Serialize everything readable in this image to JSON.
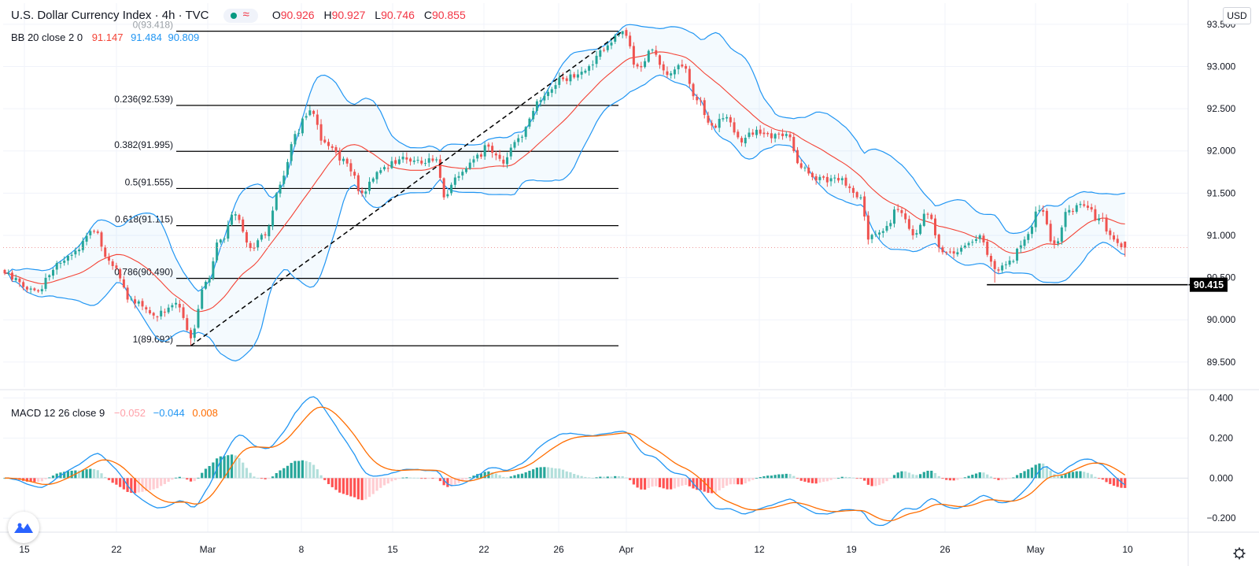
{
  "header": {
    "symbol": "U.S. Dollar Currency Index",
    "interval": "4h",
    "exchange": "TVC",
    "open_label": "O",
    "open": "90.926",
    "high_label": "H",
    "high": "90.927",
    "low_label": "L",
    "low": "90.746",
    "close_label": "C",
    "close": "90.855",
    "currency_button": "USD",
    "wave_symbol": "≈"
  },
  "bb_legend": {
    "label": "BB 20 close 2 0",
    "basis": "91.147",
    "upper": "91.484",
    "lower": "90.809"
  },
  "macd_legend": {
    "label": "MACD 12 26 close 9",
    "histogram": "−0.052",
    "macd": "−0.044",
    "signal": "0.008"
  },
  "colors": {
    "up": "#26a69a",
    "down": "#ef5350",
    "bb_band": "#2196f3",
    "bb_basis": "#f44336",
    "macd_line": "#2196f3",
    "signal_line": "#ff6d00",
    "hist_pos_strong": "#26a69a",
    "hist_pos_weak": "#b2dfdb",
    "hist_neg_strong": "#ff5252",
    "hist_neg_weak": "#ffcdd2",
    "label_tag_bg": "#000000",
    "grid": "#f0f3fa"
  },
  "icons": {
    "logo": "tradingview-logo-icon",
    "settings": "gear-icon"
  },
  "chart_data": [
    {
      "type": "candlestick",
      "title": "U.S. Dollar Currency Index, 4h, TVC",
      "ylim": [
        89.2,
        93.75
      ],
      "price_axis_ticks": [
        "93.500",
        "93.000",
        "92.500",
        "92.000",
        "91.500",
        "91.000",
        "90.500",
        "90.000",
        "89.500"
      ],
      "time_axis_labels": [
        "15",
        "22",
        "Mar",
        "8",
        "15",
        "22",
        "26",
        "Apr",
        "12",
        "19",
        "26",
        "May",
        "10"
      ],
      "anchors": [
        {
          "bar": 0,
          "close": 90.55
        },
        {
          "bar": 8,
          "close": 90.35
        },
        {
          "bar": 16,
          "close": 90.7
        },
        {
          "bar": 24,
          "close": 91.05
        },
        {
          "bar": 28,
          "close": 90.7
        },
        {
          "bar": 34,
          "close": 90.25
        },
        {
          "bar": 40,
          "close": 90.05
        },
        {
          "bar": 46,
          "close": 90.2
        },
        {
          "bar": 50,
          "close": 89.78
        },
        {
          "bar": 54,
          "close": 90.45
        },
        {
          "bar": 58,
          "close": 90.95
        },
        {
          "bar": 62,
          "close": 91.25
        },
        {
          "bar": 66,
          "close": 90.85
        },
        {
          "bar": 70,
          "close": 91.0
        },
        {
          "bar": 74,
          "close": 91.6
        },
        {
          "bar": 78,
          "close": 92.2
        },
        {
          "bar": 82,
          "close": 92.48
        },
        {
          "bar": 86,
          "close": 92.1
        },
        {
          "bar": 92,
          "close": 91.85
        },
        {
          "bar": 96,
          "close": 91.5
        },
        {
          "bar": 100,
          "close": 91.75
        },
        {
          "bar": 106,
          "close": 91.9
        },
        {
          "bar": 112,
          "close": 91.85
        },
        {
          "bar": 116,
          "close": 91.9
        },
        {
          "bar": 118,
          "close": 91.45
        },
        {
          "bar": 122,
          "close": 91.7
        },
        {
          "bar": 126,
          "close": 91.9
        },
        {
          "bar": 130,
          "close": 92.05
        },
        {
          "bar": 134,
          "close": 91.85
        },
        {
          "bar": 138,
          "close": 92.15
        },
        {
          "bar": 144,
          "close": 92.6
        },
        {
          "bar": 150,
          "close": 92.85
        },
        {
          "bar": 156,
          "close": 92.95
        },
        {
          "bar": 162,
          "close": 93.25
        },
        {
          "bar": 166,
          "close": 93.42
        },
        {
          "bar": 170,
          "close": 93.0
        },
        {
          "bar": 174,
          "close": 93.2
        },
        {
          "bar": 178,
          "close": 92.9
        },
        {
          "bar": 182,
          "close": 93.0
        },
        {
          "bar": 186,
          "close": 92.6
        },
        {
          "bar": 190,
          "close": 92.3
        },
        {
          "bar": 194,
          "close": 92.4
        },
        {
          "bar": 198,
          "close": 92.1
        },
        {
          "bar": 202,
          "close": 92.25
        },
        {
          "bar": 206,
          "close": 92.15
        },
        {
          "bar": 210,
          "close": 92.2
        },
        {
          "bar": 214,
          "close": 91.8
        },
        {
          "bar": 218,
          "close": 91.65
        },
        {
          "bar": 224,
          "close": 91.65
        },
        {
          "bar": 230,
          "close": 91.45
        },
        {
          "bar": 232,
          "close": 90.95
        },
        {
          "bar": 236,
          "close": 91.05
        },
        {
          "bar": 240,
          "close": 91.3
        },
        {
          "bar": 244,
          "close": 91.0
        },
        {
          "bar": 248,
          "close": 91.25
        },
        {
          "bar": 252,
          "close": 90.8
        },
        {
          "bar": 256,
          "close": 90.8
        },
        {
          "bar": 262,
          "close": 91.0
        },
        {
          "bar": 266,
          "close": 90.6
        },
        {
          "bar": 270,
          "close": 90.7
        },
        {
          "bar": 274,
          "close": 90.95
        },
        {
          "bar": 278,
          "close": 91.3
        },
        {
          "bar": 282,
          "close": 90.9
        },
        {
          "bar": 286,
          "close": 91.3
        },
        {
          "bar": 290,
          "close": 91.35
        },
        {
          "bar": 294,
          "close": 91.2
        },
        {
          "bar": 298,
          "close": 90.95
        },
        {
          "bar": 301,
          "close": 90.855
        }
      ],
      "bollinger": {
        "period": 20,
        "stddev": 2,
        "last_basis": 91.147,
        "last_upper": 91.484,
        "last_lower": 90.809
      },
      "fibonacci_levels": [
        {
          "label": "0(93.418)",
          "value": 93.418
        },
        {
          "label": "0.236(92.539)",
          "value": 92.539
        },
        {
          "label": "0.382(91.995)",
          "value": 91.995
        },
        {
          "label": "0.5(91.555)",
          "value": 91.555
        },
        {
          "label": "0.618(91.115)",
          "value": 91.115
        },
        {
          "label": "0.786(90.490)",
          "value": 90.49
        },
        {
          "label": "1(89.692)",
          "value": 89.692
        }
      ],
      "trend_line": {
        "from": {
          "bar": 50,
          "value": 89.692
        },
        "to": {
          "bar": 166,
          "value": 93.418
        }
      },
      "horizontal_line": {
        "value": 90.415,
        "label": "90.415",
        "from_bar": 266
      },
      "current_price": 90.855
    },
    {
      "type": "macd",
      "params": "12 26 close 9",
      "ylim": [
        -0.27,
        0.43
      ],
      "axis_ticks": [
        "0.400",
        "0.200",
        "0.000",
        "−0.200"
      ],
      "last_values": {
        "histogram": -0.052,
        "macd": -0.044,
        "signal": 0.008
      }
    }
  ]
}
